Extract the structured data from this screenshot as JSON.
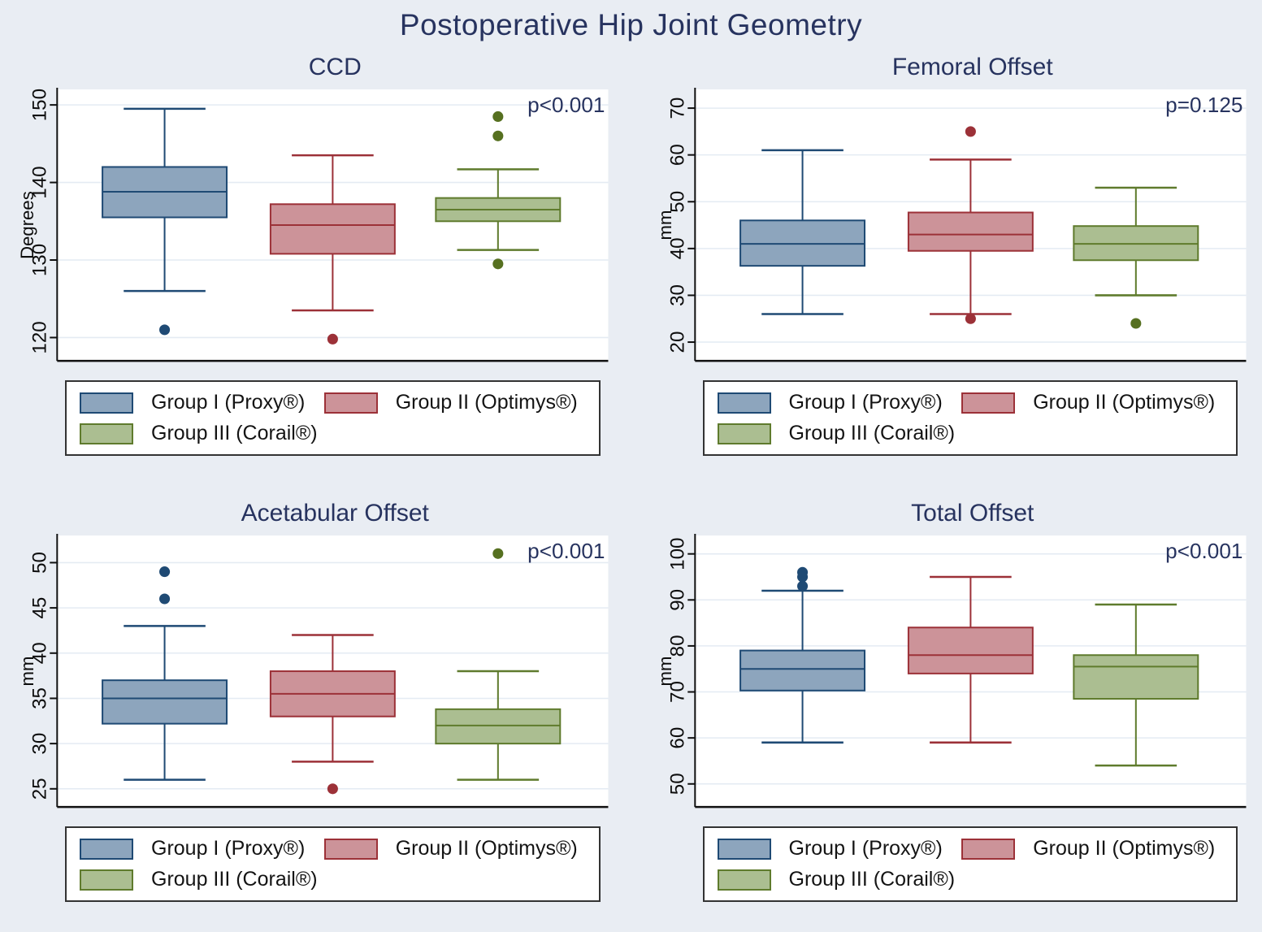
{
  "title": "Postoperative Hip Joint Geometry",
  "colors": {
    "background": "#e9edf3",
    "plot_background": "#ffffff",
    "gridline": "#e4ebf3",
    "axis": "#111111",
    "heading_navy": "#27335f",
    "group1": {
      "fill": "#8da5bd",
      "stroke": "#1f4a74",
      "dot": "#1f4a74"
    },
    "group2": {
      "fill": "#cc9399",
      "stroke": "#9c3138",
      "dot": "#9c3138"
    },
    "group3": {
      "fill": "#abbe91",
      "stroke": "#5f7b2d",
      "dot": "#567020"
    }
  },
  "legend": {
    "items": [
      {
        "key": "group1",
        "label": "Group I (Proxy®)"
      },
      {
        "key": "group2",
        "label": "Group II (Optimys®)"
      },
      {
        "key": "group3",
        "label": "Group III (Corail®)"
      }
    ]
  },
  "chart_data": [
    {
      "type": "box",
      "title": "CCD",
      "ylabel": "Degrees",
      "ylim": [
        117,
        152
      ],
      "yticks": [
        120,
        130,
        140,
        150
      ],
      "grid": true,
      "legend_position": "below",
      "p_label": "p<0.001",
      "groups": [
        {
          "name": "Group I (Proxy®)",
          "color": "group1",
          "whisker_low": 126,
          "q1": 135.5,
          "median": 138.8,
          "q3": 142,
          "whisker_high": 149.5,
          "outliers": [
            121
          ]
        },
        {
          "name": "Group II (Optimys®)",
          "color": "group2",
          "whisker_low": 123.5,
          "q1": 130.8,
          "median": 134.5,
          "q3": 137.2,
          "whisker_high": 143.5,
          "outliers": [
            119.8
          ]
        },
        {
          "name": "Group III (Corail®)",
          "color": "group3",
          "whisker_low": 131.3,
          "q1": 135,
          "median": 136.5,
          "q3": 138,
          "whisker_high": 141.7,
          "outliers": [
            148.5,
            146,
            129.5
          ]
        }
      ]
    },
    {
      "type": "box",
      "title": "Femoral Offset",
      "ylabel": "mm",
      "ylim": [
        16,
        74
      ],
      "yticks": [
        20,
        30,
        40,
        50,
        60,
        70
      ],
      "grid": true,
      "legend_position": "below",
      "p_label": "p=0.125",
      "groups": [
        {
          "name": "Group I (Proxy®)",
          "color": "group1",
          "whisker_low": 26,
          "q1": 36.3,
          "median": 41,
          "q3": 46,
          "whisker_high": 61,
          "outliers": []
        },
        {
          "name": "Group II (Optimys®)",
          "color": "group2",
          "whisker_low": 26,
          "q1": 39.5,
          "median": 43,
          "q3": 47.7,
          "whisker_high": 59,
          "outliers": [
            65,
            25
          ]
        },
        {
          "name": "Group III (Corail®)",
          "color": "group3",
          "whisker_low": 30,
          "q1": 37.5,
          "median": 41,
          "q3": 44.8,
          "whisker_high": 53,
          "outliers": [
            24
          ]
        }
      ]
    },
    {
      "type": "box",
      "title": "Acetabular Offset",
      "ylabel": "mm",
      "ylim": [
        23,
        53
      ],
      "yticks": [
        25,
        30,
        35,
        40,
        45,
        50
      ],
      "grid": true,
      "legend_position": "below",
      "p_label": "p<0.001",
      "groups": [
        {
          "name": "Group I (Proxy®)",
          "color": "group1",
          "whisker_low": 26,
          "q1": 32.2,
          "median": 35,
          "q3": 37,
          "whisker_high": 43,
          "outliers": [
            49,
            46
          ]
        },
        {
          "name": "Group II (Optimys®)",
          "color": "group2",
          "whisker_low": 28,
          "q1": 33,
          "median": 35.5,
          "q3": 38,
          "whisker_high": 42,
          "outliers": [
            25
          ]
        },
        {
          "name": "Group III (Corail®)",
          "color": "group3",
          "whisker_low": 26,
          "q1": 30,
          "median": 32,
          "q3": 33.8,
          "whisker_high": 38,
          "outliers": [
            51
          ]
        }
      ]
    },
    {
      "type": "box",
      "title": "Total Offset",
      "ylabel": "mm",
      "ylim": [
        45,
        104
      ],
      "yticks": [
        50,
        60,
        70,
        80,
        90,
        100
      ],
      "grid": true,
      "legend_position": "below",
      "p_label": "p<0.001",
      "groups": [
        {
          "name": "Group I (Proxy®)",
          "color": "group1",
          "whisker_low": 59,
          "q1": 70.3,
          "median": 75,
          "q3": 79,
          "whisker_high": 92,
          "outliers": [
            96,
            95,
            93
          ]
        },
        {
          "name": "Group II (Optimys®)",
          "color": "group2",
          "whisker_low": 59,
          "q1": 74,
          "median": 78,
          "q3": 84,
          "whisker_high": 95,
          "outliers": []
        },
        {
          "name": "Group III (Corail®)",
          "color": "group3",
          "whisker_low": 54,
          "q1": 68.5,
          "median": 75.5,
          "q3": 78,
          "whisker_high": 89,
          "outliers": []
        }
      ]
    }
  ]
}
